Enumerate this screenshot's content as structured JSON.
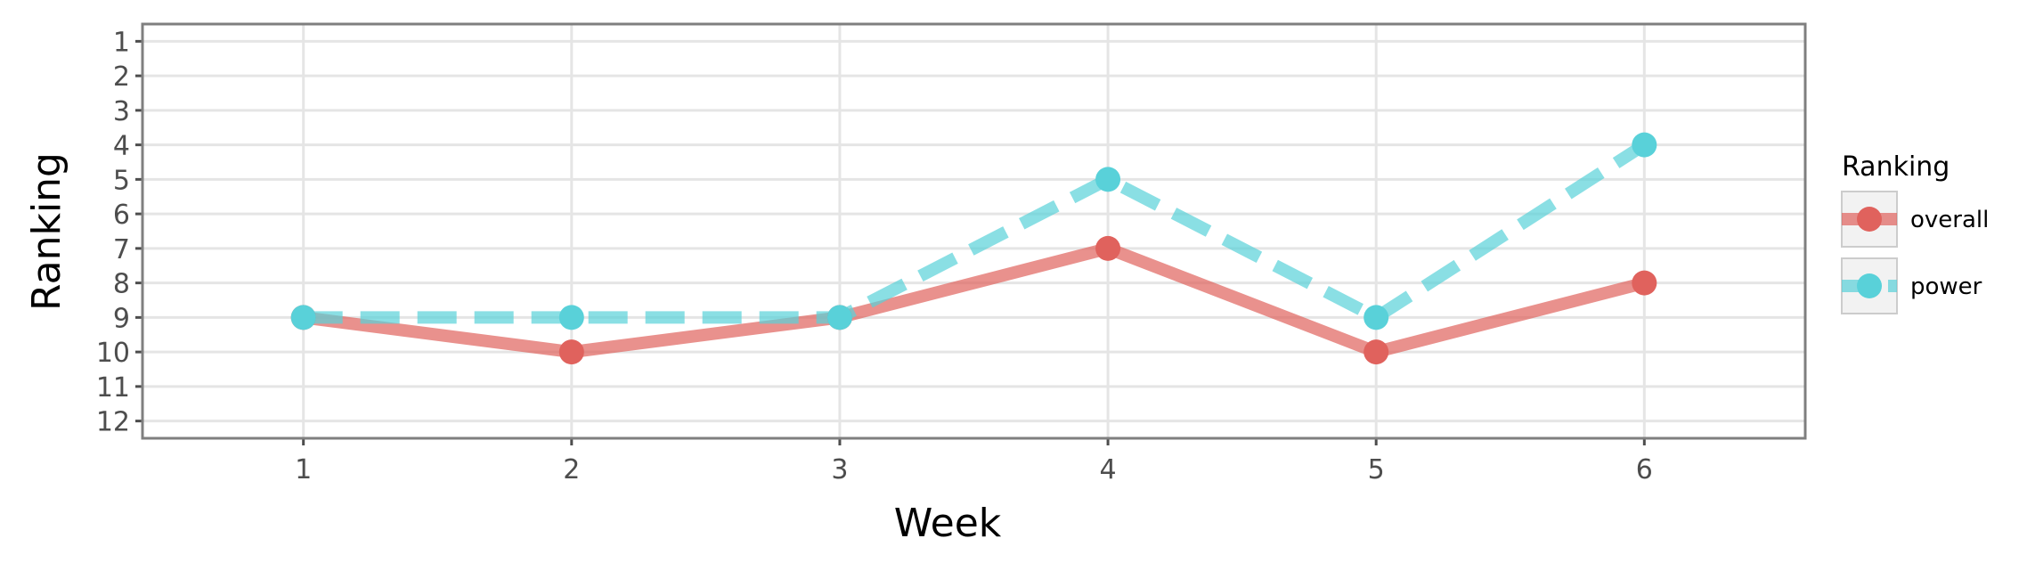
{
  "chart_data": {
    "type": "line",
    "xlabel": "Week",
    "ylabel": "Ranking",
    "x": [
      1,
      2,
      3,
      4,
      5,
      6
    ],
    "xlim": [
      0.4,
      6.6
    ],
    "ylim": [
      12.5,
      0.5
    ],
    "y_reversed": true,
    "x_ticks": [
      "1",
      "2",
      "3",
      "4",
      "5",
      "6"
    ],
    "y_ticks": [
      "1",
      "2",
      "3",
      "4",
      "5",
      "6",
      "7",
      "8",
      "9",
      "10",
      "11",
      "12"
    ],
    "grid": true,
    "legend": {
      "title": "Ranking",
      "position": "right"
    },
    "series": [
      {
        "name": "overall",
        "values": [
          9,
          10,
          9,
          7,
          10,
          8
        ],
        "color": "#e0625d",
        "line_style": "solid"
      },
      {
        "name": "power",
        "values": [
          9,
          9,
          9,
          5,
          9,
          4
        ],
        "color": "#59d1d9",
        "line_style": "dashed"
      }
    ]
  }
}
